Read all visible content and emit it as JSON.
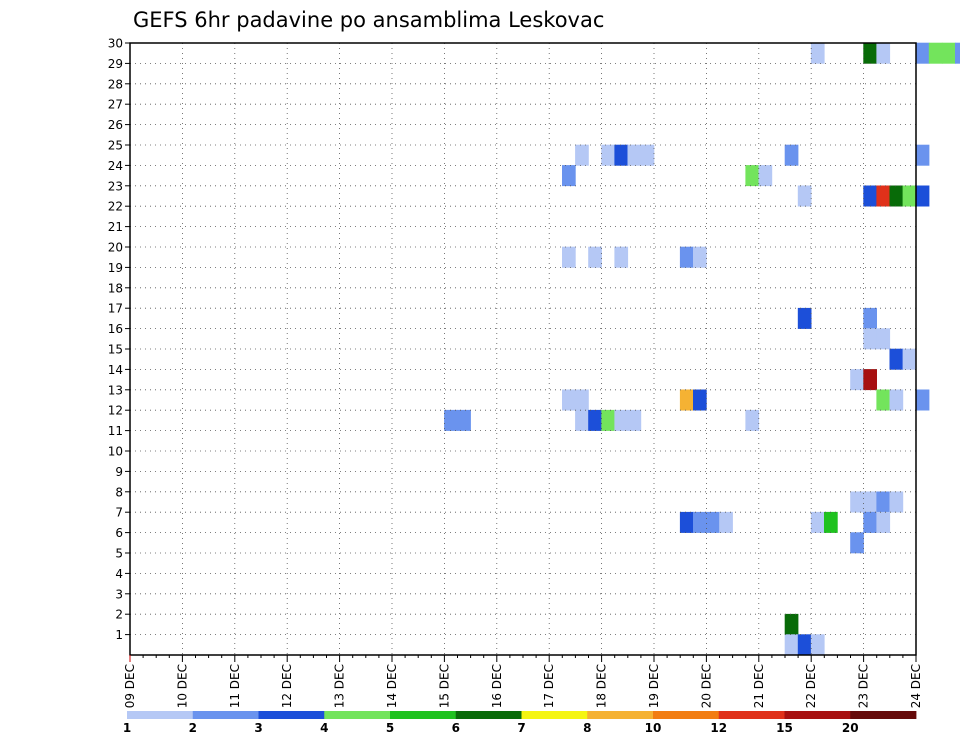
{
  "chart_data": {
    "type": "heatmap",
    "title": "GEFS 6hr padavine po ansamblima Leskovac",
    "xlabel": "",
    "ylabel": "",
    "x_ticks": [
      "09 DEC",
      "10 DEC",
      "11 DEC",
      "12 DEC",
      "13 DEC",
      "14 DEC",
      "15 DEC",
      "16 DEC",
      "17 DEC",
      "18 DEC",
      "19 DEC",
      "20 DEC",
      "21 DEC",
      "22 DEC",
      "23 DEC",
      "24 DEC"
    ],
    "x_step_per_day": 4,
    "y_ticks": [
      1,
      2,
      3,
      4,
      5,
      6,
      7,
      8,
      9,
      10,
      11,
      12,
      13,
      14,
      15,
      16,
      17,
      18,
      19,
      20,
      21,
      22,
      23,
      24,
      25,
      26,
      27,
      28,
      29,
      30
    ],
    "y_range": [
      0,
      30
    ],
    "grid": true,
    "legend": {
      "position": "bottom",
      "labels": [
        "1",
        "2",
        "3",
        "4",
        "5",
        "6",
        "7",
        "8",
        "10",
        "12",
        "15",
        "20"
      ],
      "colors": [
        "#b5c8f5",
        "#6a93ee",
        "#1c4fd9",
        "#73e45c",
        "#1fc21f",
        "#086b08",
        "#f5f512",
        "#f5b233",
        "#f27d12",
        "#e0311a",
        "#a71010",
        "#660a0a"
      ]
    },
    "cells": [
      {
        "t": 52,
        "m": 30,
        "c": 0
      },
      {
        "t": 56,
        "m": 30,
        "c": 5
      },
      {
        "t": 57,
        "m": 30,
        "c": 0
      },
      {
        "t": 60,
        "m": 30,
        "c": 1
      },
      {
        "t": 61,
        "m": 30,
        "c": 3
      },
      {
        "t": 62,
        "m": 30,
        "c": 3
      },
      {
        "t": 63,
        "m": 30,
        "c": 1
      },
      {
        "t": 34,
        "m": 25,
        "c": 0
      },
      {
        "t": 36,
        "m": 25,
        "c": 0
      },
      {
        "t": 37,
        "m": 25,
        "c": 2
      },
      {
        "t": 38,
        "m": 25,
        "c": 0
      },
      {
        "t": 39,
        "m": 25,
        "c": 0
      },
      {
        "t": 50,
        "m": 25,
        "c": 1
      },
      {
        "t": 60,
        "m": 25,
        "c": 1
      },
      {
        "t": 33,
        "m": 24,
        "c": 1
      },
      {
        "t": 47,
        "m": 24,
        "c": 3
      },
      {
        "t": 48,
        "m": 24,
        "c": 0
      },
      {
        "t": 51,
        "m": 23,
        "c": 0
      },
      {
        "t": 56,
        "m": 23,
        "c": 2
      },
      {
        "t": 57,
        "m": 23,
        "c": 9
      },
      {
        "t": 58,
        "m": 23,
        "c": 5
      },
      {
        "t": 59,
        "m": 23,
        "c": 3
      },
      {
        "t": 60,
        "m": 23,
        "c": 2
      },
      {
        "t": 33,
        "m": 20,
        "c": 0
      },
      {
        "t": 35,
        "m": 20,
        "c": 0
      },
      {
        "t": 37,
        "m": 20,
        "c": 0
      },
      {
        "t": 42,
        "m": 20,
        "c": 1
      },
      {
        "t": 43,
        "m": 20,
        "c": 0
      },
      {
        "t": 51,
        "m": 17,
        "c": 2
      },
      {
        "t": 56,
        "m": 17,
        "c": 1
      },
      {
        "t": 56,
        "m": 16,
        "c": 0
      },
      {
        "t": 57,
        "m": 16,
        "c": 0
      },
      {
        "t": 58,
        "m": 15,
        "c": 2
      },
      {
        "t": 59,
        "m": 15,
        "c": 0
      },
      {
        "t": 55,
        "m": 14,
        "c": 0
      },
      {
        "t": 56,
        "m": 14,
        "c": 10
      },
      {
        "t": 33,
        "m": 13,
        "c": 0
      },
      {
        "t": 34,
        "m": 13,
        "c": 0
      },
      {
        "t": 42,
        "m": 13,
        "c": 7
      },
      {
        "t": 43,
        "m": 13,
        "c": 2
      },
      {
        "t": 57,
        "m": 13,
        "c": 3
      },
      {
        "t": 58,
        "m": 13,
        "c": 0
      },
      {
        "t": 60,
        "m": 13,
        "c": 1
      },
      {
        "t": 24,
        "m": 12,
        "c": 1
      },
      {
        "t": 25,
        "m": 12,
        "c": 1
      },
      {
        "t": 34,
        "m": 12,
        "c": 0
      },
      {
        "t": 35,
        "m": 12,
        "c": 2
      },
      {
        "t": 36,
        "m": 12,
        "c": 3
      },
      {
        "t": 37,
        "m": 12,
        "c": 0
      },
      {
        "t": 38,
        "m": 12,
        "c": 0
      },
      {
        "t": 47,
        "m": 12,
        "c": 0
      },
      {
        "t": 55,
        "m": 8,
        "c": 0
      },
      {
        "t": 56,
        "m": 8,
        "c": 0
      },
      {
        "t": 57,
        "m": 8,
        "c": 1
      },
      {
        "t": 58,
        "m": 8,
        "c": 0
      },
      {
        "t": 42,
        "m": 7,
        "c": 2
      },
      {
        "t": 43,
        "m": 7,
        "c": 1
      },
      {
        "t": 44,
        "m": 7,
        "c": 1
      },
      {
        "t": 45,
        "m": 7,
        "c": 0
      },
      {
        "t": 52,
        "m": 7,
        "c": 0
      },
      {
        "t": 53,
        "m": 7,
        "c": 4
      },
      {
        "t": 56,
        "m": 7,
        "c": 1
      },
      {
        "t": 57,
        "m": 7,
        "c": 0
      },
      {
        "t": 55,
        "m": 6,
        "c": 1
      },
      {
        "t": 50,
        "m": 2,
        "c": 5
      },
      {
        "t": 50,
        "m": 1,
        "c": 0
      },
      {
        "t": 51,
        "m": 1,
        "c": 2
      },
      {
        "t": 52,
        "m": 1,
        "c": 0
      }
    ]
  }
}
